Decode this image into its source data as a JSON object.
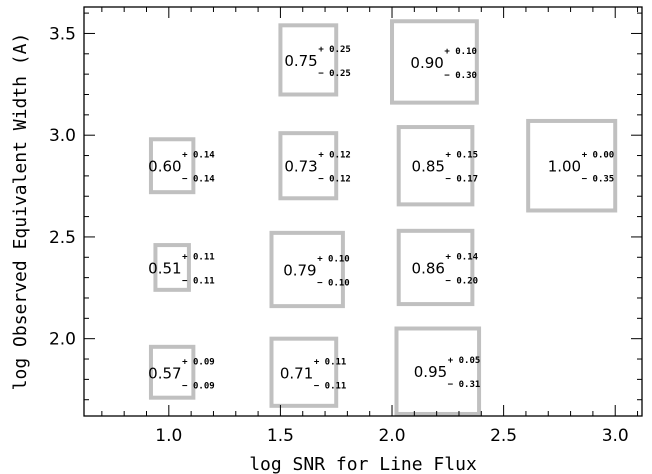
{
  "chart_data": {
    "type": "scatter",
    "title": "",
    "xlabel": "log SNR for Line Flux",
    "ylabel": "log Observed Equivalent Width (A)",
    "xlim": [
      0.62,
      3.12
    ],
    "ylim": [
      1.62,
      3.63
    ],
    "xticks": [
      1.0,
      1.5,
      2.0,
      2.5,
      3.0
    ],
    "xtick_labels": [
      "1.0",
      "1.5",
      "2.0",
      "2.5",
      "3.0"
    ],
    "yticks": [
      2.0,
      2.5,
      3.0,
      3.5
    ],
    "ytick_labels": [
      "2.0",
      "2.5",
      "3.0",
      "3.5"
    ],
    "box_color": "#c0c0c0",
    "grid": false,
    "cells": [
      {
        "x0": 1.5,
        "x1": 1.75,
        "y0": 3.2,
        "y1": 3.54,
        "value": "0.75",
        "plus": "+ 0.25",
        "minus": "− 0.25"
      },
      {
        "x0": 2.0,
        "x1": 2.38,
        "y0": 3.16,
        "y1": 3.56,
        "value": "0.90",
        "plus": "+ 0.10",
        "minus": "− 0.30"
      },
      {
        "x0": 0.92,
        "x1": 1.11,
        "y0": 2.72,
        "y1": 2.98,
        "value": "0.60",
        "plus": "+ 0.14",
        "minus": "− 0.14"
      },
      {
        "x0": 1.5,
        "x1": 1.75,
        "y0": 2.69,
        "y1": 3.01,
        "value": "0.73",
        "plus": "+ 0.12",
        "minus": "− 0.12"
      },
      {
        "x0": 2.03,
        "x1": 2.36,
        "y0": 2.66,
        "y1": 3.04,
        "value": "0.85",
        "plus": "+ 0.15",
        "minus": "− 0.17"
      },
      {
        "x0": 2.61,
        "x1": 3.0,
        "y0": 2.63,
        "y1": 3.07,
        "value": "1.00",
        "plus": "+ 0.00",
        "minus": "− 0.35"
      },
      {
        "x0": 0.94,
        "x1": 1.09,
        "y0": 2.24,
        "y1": 2.46,
        "value": "0.51",
        "plus": "+ 0.11",
        "minus": "− 0.11"
      },
      {
        "x0": 1.46,
        "x1": 1.78,
        "y0": 2.16,
        "y1": 2.52,
        "value": "0.79",
        "plus": "+ 0.10",
        "minus": "− 0.10"
      },
      {
        "x0": 2.03,
        "x1": 2.36,
        "y0": 2.17,
        "y1": 2.53,
        "value": "0.86",
        "plus": "+ 0.14",
        "minus": "− 0.20"
      },
      {
        "x0": 0.92,
        "x1": 1.11,
        "y0": 1.71,
        "y1": 1.96,
        "value": "0.57",
        "plus": "+ 0.09",
        "minus": "− 0.09"
      },
      {
        "x0": 1.46,
        "x1": 1.75,
        "y0": 1.67,
        "y1": 2.0,
        "value": "0.71",
        "plus": "+ 0.11",
        "minus": "− 0.11"
      },
      {
        "x0": 2.02,
        "x1": 2.39,
        "y0": 1.63,
        "y1": 2.05,
        "value": "0.95",
        "plus": "+ 0.05",
        "minus": "− 0.31"
      }
    ]
  }
}
